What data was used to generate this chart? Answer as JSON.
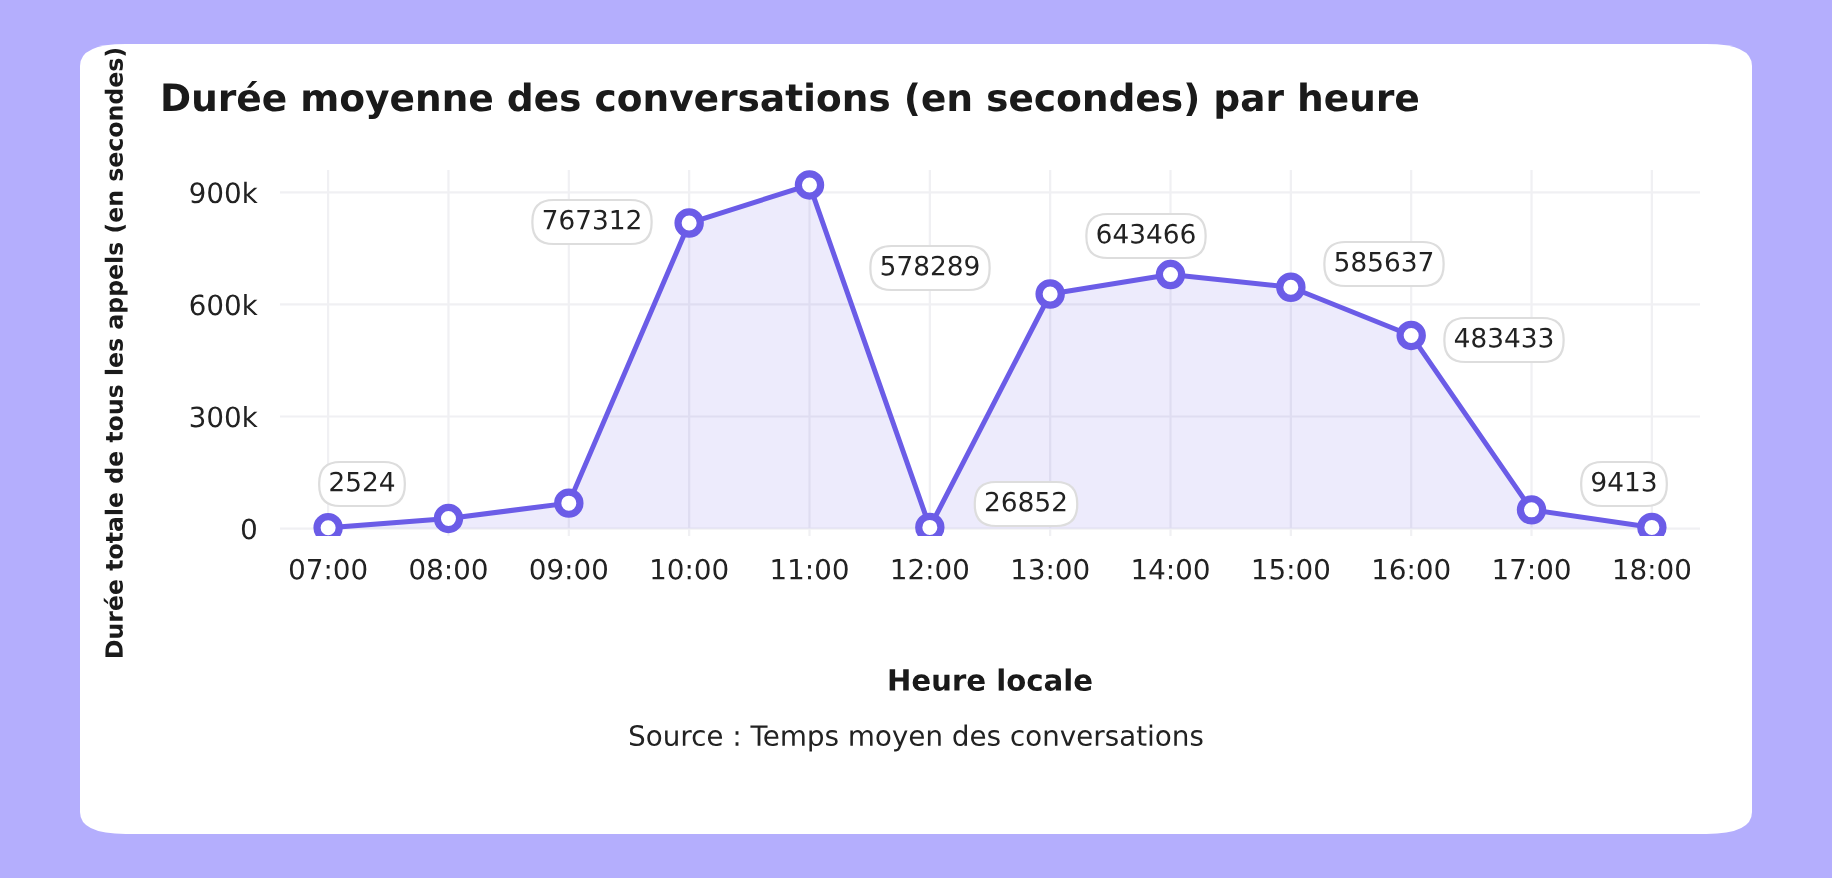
{
  "chart_data": {
    "type": "area",
    "title": "Durée moyenne des conversations (en secondes) par heure",
    "xlabel": "Heure locale",
    "ylabel": "Durée totale de tous les appels (en secondes)",
    "categories": [
      "07:00",
      "08:00",
      "09:00",
      "10:00",
      "11:00",
      "12:00",
      "13:00",
      "14:00",
      "15:00",
      "16:00",
      "17:00",
      "18:00"
    ],
    "series": [
      {
        "color": "#6b5ce7",
        "values": [
          2000,
          27000,
          68000,
          818000,
          920000,
          3000,
          628000,
          680000,
          646000,
          517000,
          50000,
          3000
        ]
      }
    ],
    "ylim": [
      -20000,
      960000
    ],
    "yticks": [
      0,
      {
        "value": 300000,
        "label": "300k"
      },
      {
        "value": 600000,
        "label": "600k"
      },
      {
        "value": 900000,
        "label": "900k"
      }
    ],
    "grid": true,
    "marker": "circle",
    "line_style": "solid",
    "annotations": [
      "2524",
      "767312",
      "578289",
      "26852",
      "643466",
      "585637",
      "483433",
      "9413",
      "Source : Temps moyen des conversations"
    ]
  }
}
